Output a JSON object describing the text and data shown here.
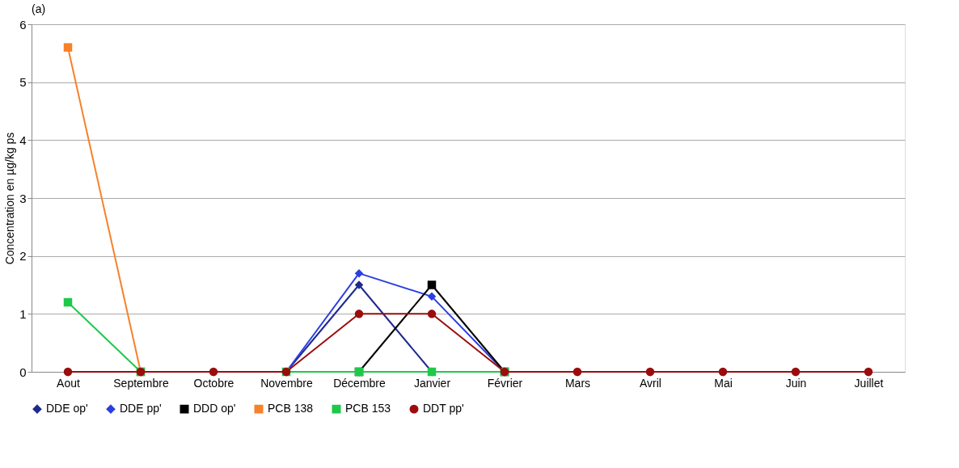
{
  "chart_data": {
    "type": "line",
    "annotations": [
      "(a)"
    ],
    "ylabel": "Concentration en µg/kg ps",
    "categories": [
      "Aout",
      "Septembre",
      "Octobre",
      "Novembre",
      "Décembre",
      "Janvier",
      "Février",
      "Mars",
      "Avril",
      "Mai",
      "Juin",
      "Juillet"
    ],
    "series": [
      {
        "name": "DDE op'",
        "color": "#1f2a8c",
        "marker": "diamond",
        "values": [
          null,
          null,
          null,
          0,
          1.5,
          0,
          null,
          null,
          null,
          null,
          null,
          null
        ]
      },
      {
        "name": "DDE pp'",
        "color": "#2b3fe0",
        "marker": "diamond",
        "values": [
          null,
          null,
          null,
          0,
          1.7,
          1.3,
          0,
          null,
          null,
          null,
          null,
          null
        ]
      },
      {
        "name": "DDD op'",
        "color": "#000000",
        "marker": "square",
        "values": [
          null,
          null,
          null,
          null,
          0,
          1.5,
          0,
          null,
          null,
          null,
          null,
          null
        ]
      },
      {
        "name": "PCB 138",
        "color": "#f7812a",
        "marker": "square",
        "values": [
          5.6,
          0,
          null,
          null,
          null,
          null,
          null,
          null,
          null,
          null,
          null,
          null
        ]
      },
      {
        "name": "PCB 153",
        "color": "#1ec94a",
        "marker": "square",
        "values": [
          1.2,
          0,
          null,
          0,
          0,
          0,
          0,
          null,
          null,
          null,
          null,
          null
        ]
      },
      {
        "name": "DDT pp'",
        "color": "#9b0d0d",
        "marker": "circle",
        "values": [
          0,
          0,
          0,
          0,
          1,
          1,
          0,
          0,
          0,
          0,
          0,
          0
        ]
      }
    ],
    "ylim": [
      0,
      6
    ],
    "yticks": [
      0,
      1,
      2,
      3,
      4,
      5,
      6
    ],
    "grid": "y",
    "legend": "bottom",
    "line_style": "solid"
  }
}
